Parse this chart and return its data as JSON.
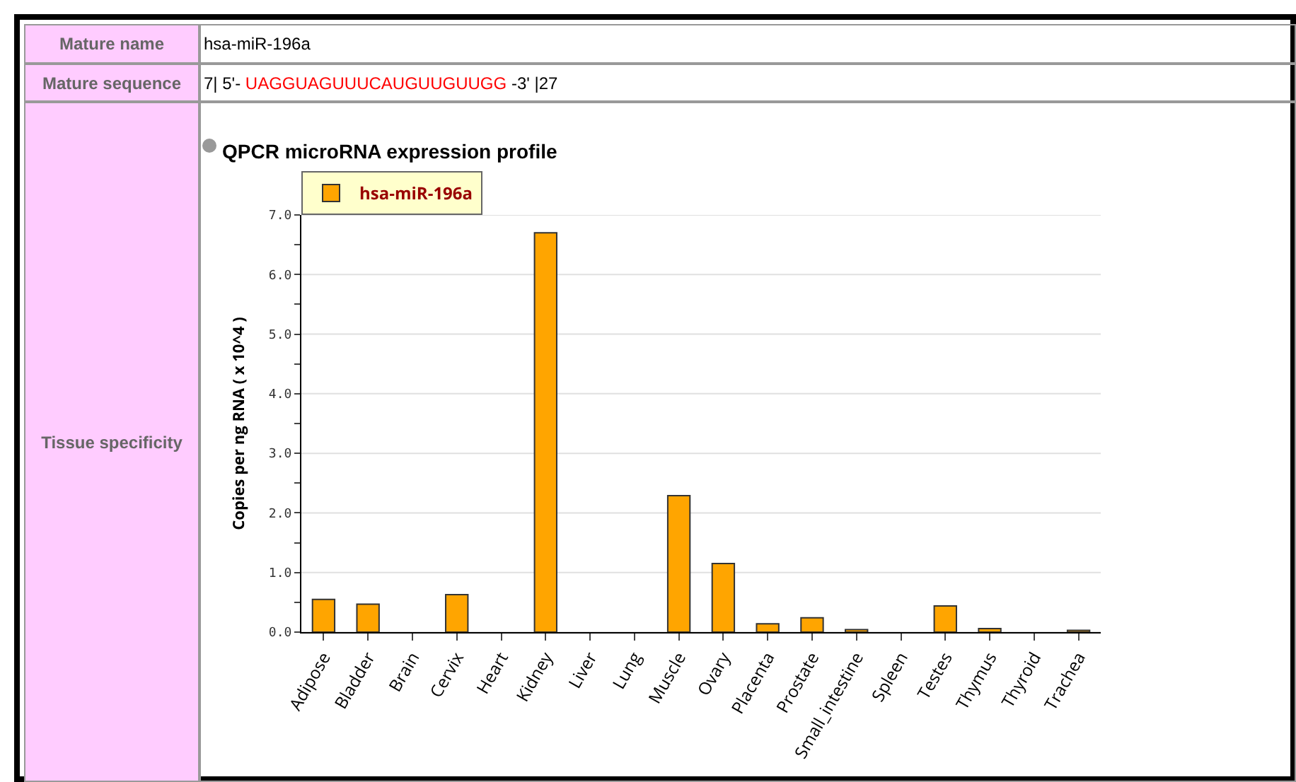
{
  "chart_data": {
    "type": "bar",
    "title": "QPCR microRNA expression profile",
    "ylabel": "Copies per ng RNA ( x 10^4 )",
    "categories": [
      "Adipose",
      "Bladder",
      "Brain",
      "Cervix",
      "Heart",
      "Kidney",
      "Liver",
      "Lung",
      "Muscle",
      "Ovary",
      "Placenta",
      "Prostate",
      "Small_intestine",
      "Spleen",
      "Testes",
      "Thymus",
      "Thyroid",
      "Trachea"
    ],
    "series": [
      {
        "name": "hsa-miR-196a",
        "color": "#ffa500",
        "values": [
          0.55,
          0.47,
          0,
          0.63,
          0,
          6.7,
          0,
          0,
          2.29,
          1.15,
          0.14,
          0.24,
          0.04,
          0,
          0.44,
          0.06,
          0,
          0.03
        ]
      }
    ],
    "ylim": [
      0,
      7
    ],
    "yticks": [
      {
        "value": 0,
        "label": "0.0"
      },
      {
        "value": 0.5,
        "label": null
      },
      {
        "value": 1,
        "label": "1.0"
      },
      {
        "value": 1.5,
        "label": null
      },
      {
        "value": 2,
        "label": "2.0"
      },
      {
        "value": 2.5,
        "label": null
      },
      {
        "value": 3,
        "label": "3.0"
      },
      {
        "value": 3.5,
        "label": null
      },
      {
        "value": 4,
        "label": "4.0"
      },
      {
        "value": 4.5,
        "label": null
      },
      {
        "value": 5,
        "label": "5.0"
      },
      {
        "value": 5.5,
        "label": null
      },
      {
        "value": 6,
        "label": "6.0"
      },
      {
        "value": 6.5,
        "label": null
      },
      {
        "value": 7,
        "label": "7.0"
      }
    ],
    "grid": "y",
    "legend": "top left",
    "annotations": [
      "Mature name",
      "hsa-miR-196a",
      "Mature sequence",
      "7| 5'- ",
      "UAGGUAGUUUCAUGUUGUUGG",
      " -3' |27",
      "Tissue specificity"
    ]
  }
}
